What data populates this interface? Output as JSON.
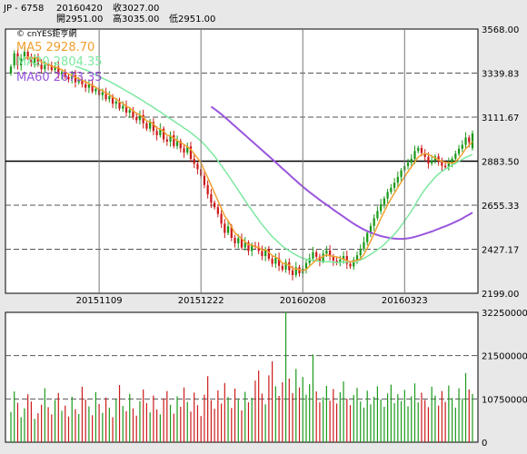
{
  "header": {
    "symbol": "JP - 6758",
    "date": "20160420",
    "close": "收3027.00",
    "open": "開2951.00",
    "high": "高3035.00",
    "low": "低2951.00"
  },
  "legend": {
    "copyright": "© cnYES鉅亨網",
    "ma5": "MA5 2928.70",
    "ma20": "MA20 2804.35",
    "ma60": "MA60 2673.35"
  },
  "colors": {
    "background": "#e8e8e8",
    "plot_bg": "#ffffff",
    "up": "#1a9a1a",
    "down": "#cc1a1a",
    "ma5": "#f0a030",
    "ma20": "#7de8a0",
    "ma60": "#9955dd",
    "grid": "#555555",
    "reference_line": "#000000"
  },
  "chart_data": [
    {
      "type": "candlestick",
      "title": "",
      "y_ticks": [
        "3568.00",
        "3339.83",
        "3111.67",
        "2883.50",
        "2655.33",
        "2427.17",
        "2199.00"
      ],
      "ylim": [
        2199,
        3568
      ],
      "x_ticks": [
        "20151109",
        "20151222",
        "20160208",
        "20160323"
      ],
      "reference_value": 2883.5,
      "dates": [
        "2015-09-30",
        "2015-10-01",
        "2015-10-02",
        "2015-10-05",
        "2015-10-06",
        "2015-10-07",
        "2015-10-08",
        "2015-10-09",
        "2015-10-13",
        "2015-10-14",
        "2015-10-15",
        "2015-10-16",
        "2015-10-19",
        "2015-10-20",
        "2015-10-21",
        "2015-10-22",
        "2015-10-23",
        "2015-10-26",
        "2015-10-27",
        "2015-10-28",
        "2015-10-29",
        "2015-10-30",
        "2015-11-02",
        "2015-11-04",
        "2015-11-05",
        "2015-11-06",
        "2015-11-09",
        "2015-11-10",
        "2015-11-11",
        "2015-11-12",
        "2015-11-13",
        "2015-11-16",
        "2015-11-17",
        "2015-11-18",
        "2015-11-19",
        "2015-11-20",
        "2015-11-24",
        "2015-11-25",
        "2015-11-26",
        "2015-11-27",
        "2015-11-30",
        "2015-12-01",
        "2015-12-02",
        "2015-12-03",
        "2015-12-04",
        "2015-12-07",
        "2015-12-08",
        "2015-12-09",
        "2015-12-10",
        "2015-12-11",
        "2015-12-14",
        "2015-12-15",
        "2015-12-16",
        "2015-12-17",
        "2015-12-18",
        "2015-12-21",
        "2015-12-22",
        "2015-12-24",
        "2015-12-25",
        "2015-12-28",
        "2015-12-29",
        "2015-12-30",
        "2016-01-04",
        "2016-01-05",
        "2016-01-06",
        "2016-01-07",
        "2016-01-08",
        "2016-01-12",
        "2016-01-13",
        "2016-01-14",
        "2016-01-15",
        "2016-01-18",
        "2016-01-19",
        "2016-01-20",
        "2016-01-21",
        "2016-01-22",
        "2016-01-25",
        "2016-01-26",
        "2016-01-27",
        "2016-01-28",
        "2016-01-29",
        "2016-02-01",
        "2016-02-02",
        "2016-02-03",
        "2016-02-04",
        "2016-02-05",
        "2016-02-08",
        "2016-02-09",
        "2016-02-10",
        "2016-02-12",
        "2016-02-15",
        "2016-02-16",
        "2016-02-17",
        "2016-02-18",
        "2016-02-19",
        "2016-02-22",
        "2016-02-23",
        "2016-02-24",
        "2016-02-25",
        "2016-02-26",
        "2016-02-29",
        "2016-03-01",
        "2016-03-02",
        "2016-03-03",
        "2016-03-04",
        "2016-03-07",
        "2016-03-08",
        "2016-03-09",
        "2016-03-10",
        "2016-03-11",
        "2016-03-14",
        "2016-03-15",
        "2016-03-16",
        "2016-03-17",
        "2016-03-18",
        "2016-03-22",
        "2016-03-23",
        "2016-03-24",
        "2016-03-25",
        "2016-03-28",
        "2016-03-29",
        "2016-03-30",
        "2016-03-31",
        "2016-04-01",
        "2016-04-04",
        "2016-04-05",
        "2016-04-06",
        "2016-04-07",
        "2016-04-08",
        "2016-04-11",
        "2016-04-12",
        "2016-04-13",
        "2016-04-14",
        "2016-04-15",
        "2016-04-18",
        "2016-04-19",
        "2016-04-20"
      ],
      "close": [
        3373,
        3442,
        3380,
        3415,
        3450,
        3425,
        3395,
        3418,
        3384,
        3360,
        3390,
        3380,
        3356,
        3372,
        3334,
        3345,
        3320,
        3308,
        3328,
        3292,
        3306,
        3282,
        3264,
        3281,
        3245,
        3258,
        3226,
        3240,
        3205,
        3219,
        3181,
        3192,
        3156,
        3170,
        3135,
        3148,
        3111,
        3096,
        3122,
        3080,
        3052,
        3086,
        3040,
        3018,
        3052,
        2996,
        2985,
        3018,
        2962,
        2988,
        2950,
        2928,
        2960,
        2895,
        2870,
        2842,
        2808,
        2760,
        2712,
        2668,
        2645,
        2610,
        2560,
        2512,
        2546,
        2486,
        2458,
        2485,
        2436,
        2462,
        2418,
        2446,
        2440,
        2418,
        2392,
        2428,
        2378,
        2352,
        2382,
        2341,
        2322,
        2360,
        2318,
        2293,
        2334,
        2302,
        2328,
        2356,
        2380,
        2412,
        2388,
        2366,
        2404,
        2420,
        2391,
        2368,
        2356,
        2374,
        2392,
        2352,
        2338,
        2372,
        2396,
        2428,
        2464,
        2512,
        2548,
        2588,
        2625,
        2660,
        2690,
        2724,
        2745,
        2772,
        2802,
        2836,
        2858,
        2876,
        2896,
        2936,
        2952,
        2926,
        2906,
        2872,
        2888,
        2908,
        2882,
        2860,
        2852,
        2874,
        2896,
        2922,
        2948,
        2968,
        3006,
        2982,
        3027
      ],
      "open": [
        3338,
        3380,
        3442,
        3380,
        3415,
        3450,
        3425,
        3395,
        3418,
        3384,
        3360,
        3390,
        3380,
        3356,
        3372,
        3334,
        3345,
        3320,
        3308,
        3328,
        3292,
        3306,
        3282,
        3264,
        3281,
        3245,
        3258,
        3226,
        3240,
        3205,
        3219,
        3181,
        3192,
        3156,
        3170,
        3135,
        3148,
        3111,
        3096,
        3122,
        3080,
        3052,
        3086,
        3040,
        3018,
        3052,
        2996,
        2985,
        3018,
        2962,
        2988,
        2950,
        2928,
        2960,
        2895,
        2870,
        2842,
        2808,
        2760,
        2712,
        2668,
        2645,
        2610,
        2560,
        2512,
        2546,
        2486,
        2458,
        2485,
        2436,
        2462,
        2418,
        2446,
        2440,
        2418,
        2392,
        2428,
        2378,
        2352,
        2382,
        2341,
        2322,
        2360,
        2318,
        2293,
        2334,
        2302,
        2328,
        2356,
        2380,
        2412,
        2388,
        2366,
        2404,
        2420,
        2391,
        2368,
        2356,
        2374,
        2392,
        2352,
        2338,
        2372,
        2396,
        2428,
        2464,
        2512,
        2548,
        2588,
        2625,
        2660,
        2690,
        2724,
        2745,
        2772,
        2802,
        2836,
        2858,
        2876,
        2896,
        2936,
        2952,
        2926,
        2906,
        2872,
        2888,
        2908,
        2882,
        2860,
        2852,
        2874,
        2896,
        2922,
        2948,
        2968,
        3006,
        2951
      ],
      "ma5_last": 2928.7,
      "ma20_last": 2804.35,
      "ma60_last": 2673.35
    },
    {
      "type": "bar",
      "title": "",
      "y_ticks": [
        "32250000",
        "21500000",
        "10750000",
        "0"
      ],
      "ylim": [
        0,
        32250000
      ],
      "volume": [
        7.5,
        12.6,
        9.8,
        6.2,
        8.4,
        11.9,
        10.1,
        5.8,
        7.2,
        9.3,
        13.4,
        8.7,
        6.9,
        10.5,
        12.2,
        7.8,
        9.1,
        6.4,
        11.3,
        8.2,
        7.0,
        13.8,
        10.6,
        8.9,
        6.7,
        12.4,
        9.5,
        7.3,
        11.1,
        8.6,
        6.2,
        10.8,
        14.2,
        9.0,
        7.7,
        12.0,
        8.4,
        6.6,
        10.2,
        13.1,
        9.7,
        7.4,
        11.6,
        8.1,
        6.9,
        10.9,
        12.7,
        9.3,
        7.1,
        11.4,
        8.8,
        13.6,
        10.0,
        7.6,
        12.3,
        9.2,
        6.5,
        11.8,
        16.4,
        10.4,
        8.3,
        12.9,
        9.6,
        14.7,
        11.2,
        8.5,
        13.3,
        10.7,
        7.9,
        12.5,
        9.9,
        11.0,
        15.3,
        17.8,
        12.1,
        9.4,
        16.6,
        20.1,
        13.9,
        11.5,
        14.9,
        32.3,
        15.8,
        12.2,
        18.2,
        13.6,
        16.2,
        11.8,
        14.4,
        21.8,
        12.6,
        9.9,
        11.2,
        14.0,
        10.3,
        13.2,
        9.6,
        12.4,
        15.1,
        10.8,
        9.2,
        11.7,
        13.5,
        10.1,
        8.6,
        12.8,
        9.4,
        11.3,
        13.9,
        10.6,
        8.8,
        12.1,
        14.3,
        9.7,
        11.9,
        10.2,
        13.0,
        8.9,
        11.4,
        14.6,
        9.9,
        12.3,
        10.5,
        8.7,
        13.8,
        11.6,
        9.1,
        12.7,
        10.0,
        14.1,
        11.0,
        8.6,
        13.4,
        10.9,
        17.2,
        13.1,
        12.0
      ]
    }
  ]
}
